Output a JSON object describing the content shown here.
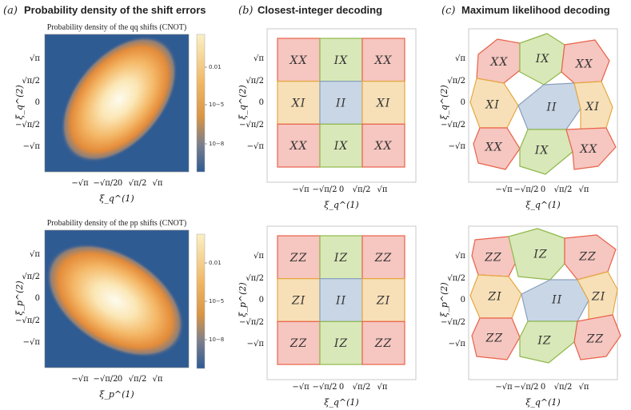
{
  "panels": {
    "a": {
      "label": "(a)",
      "title": "Probability density of the shift errors"
    },
    "b": {
      "label": "(b)",
      "title": "Closest-integer decoding"
    },
    "c": {
      "label": "(c)",
      "title": "Maximum likelihood decoding"
    }
  },
  "density_plots": {
    "top_title": "Probability density of the qq shifts (CNOT)",
    "bottom_title": "Probability density of the pp shifts (CNOT)",
    "colorbar_ticks": [
      "0.01",
      "10−5",
      "10−8"
    ]
  },
  "ticks": {
    "labels": [
      "−√π",
      "−√π/2",
      "0",
      "√π/2",
      "√π"
    ]
  },
  "axes": {
    "x_top": "ξ_q^(1)",
    "y_top": "ξ_q^(2)",
    "x_bottom_a": "ξ_p^(1)",
    "y_bottom": "ξ_p^(2)",
    "x_bottom_bc": "ξ_q^(1)"
  },
  "grid_top": [
    [
      "XX",
      "IX",
      "XX"
    ],
    [
      "XI",
      "II",
      "XI"
    ],
    [
      "XX",
      "IX",
      "XX"
    ]
  ],
  "grid_bottom": [
    [
      "ZZ",
      "IZ",
      "ZZ"
    ],
    [
      "ZI",
      "II",
      "ZI"
    ],
    [
      "ZZ",
      "IZ",
      "ZZ"
    ]
  ],
  "colors": {
    "red": "#f6c6c0",
    "red_edge": "#e8624a",
    "green": "#d9e8b8",
    "green_edge": "#8fb84c",
    "yellow": "#f7e0b8",
    "yellow_edge": "#e6a840",
    "blue": "#c8d6e6",
    "blue_edge": "#8aa0bc",
    "density_bg": "#2f5b93"
  }
}
